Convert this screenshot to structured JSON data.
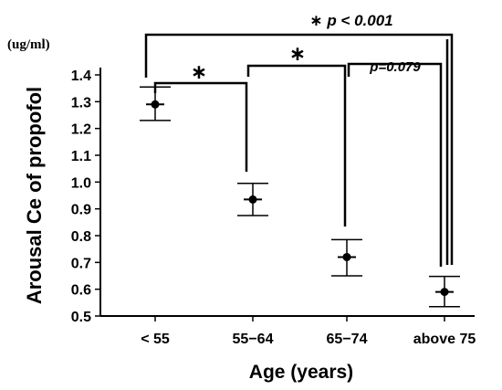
{
  "chart_data": {
    "type": "scatter",
    "subtype": "dot-with-error-bars",
    "title": "",
    "xlabel": "Age (years)",
    "ylabel": "Arousal Ce of propofol",
    "unit_label": "(ug/ml)",
    "categories": [
      "< 55",
      "55−64",
      "65−74",
      "above 75"
    ],
    "values": [
      1.29,
      0.935,
      0.72,
      0.59
    ],
    "error_low": [
      1.23,
      0.875,
      0.65,
      0.535
    ],
    "error_high": [
      1.355,
      0.995,
      0.785,
      0.648
    ],
    "ylim": [
      0.5,
      1.4
    ],
    "yticks": [
      "0.5",
      "0.6",
      "0.7",
      "0.8",
      "0.9",
      "1.0",
      "1.1",
      "1.2",
      "1.3",
      "1.4"
    ],
    "grid": false,
    "legend": "none",
    "annotations": [
      {
        "from": 0,
        "to": 3,
        "text": "∗ p < 0.001",
        "style": "bold-italic"
      },
      {
        "from": 0,
        "to": 1,
        "text": "∗",
        "style": "plain"
      },
      {
        "from": 1,
        "to": 2,
        "text": "∗",
        "style": "plain"
      },
      {
        "from": 2,
        "to": 3,
        "text": "p=0.079",
        "style": "bold-italic"
      }
    ],
    "colors": {
      "marks": "#000000",
      "annotation_lines": "#000000"
    }
  }
}
